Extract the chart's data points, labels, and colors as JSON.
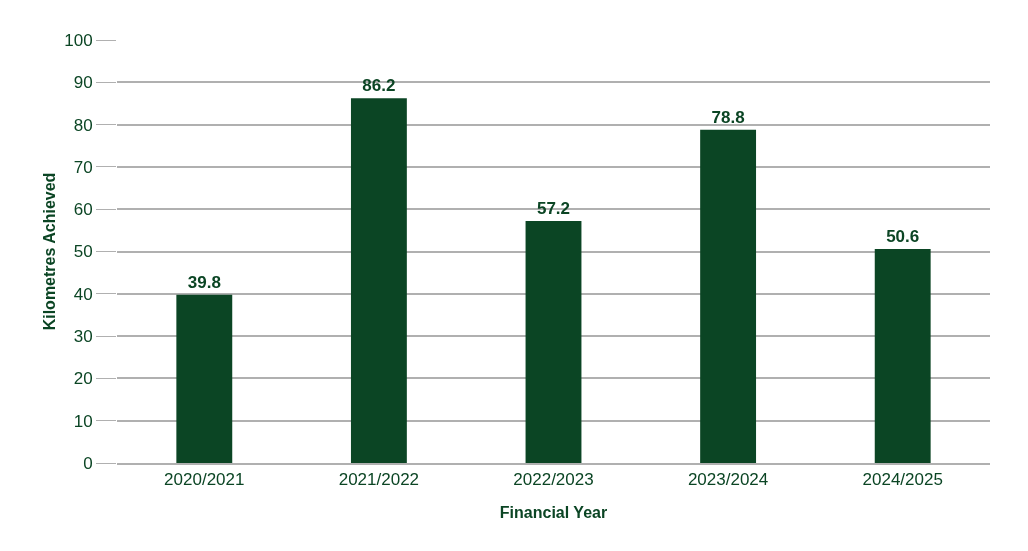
{
  "chart_data": {
    "type": "bar",
    "xlabel": "Financial Year",
    "ylabel": "Kilometres Achieved",
    "categories": [
      "2020/2021",
      "2021/2022",
      "2022/2023",
      "2023/2024",
      "2024/2025"
    ],
    "values": [
      39.8,
      86.2,
      57.2,
      78.8,
      50.6
    ],
    "color": "#0b4524",
    "ylim": [
      0,
      100
    ],
    "yticks": [
      0,
      10,
      20,
      30,
      40,
      50,
      60,
      70,
      80,
      90,
      100
    ],
    "grid": "y",
    "data_labels": true
  }
}
